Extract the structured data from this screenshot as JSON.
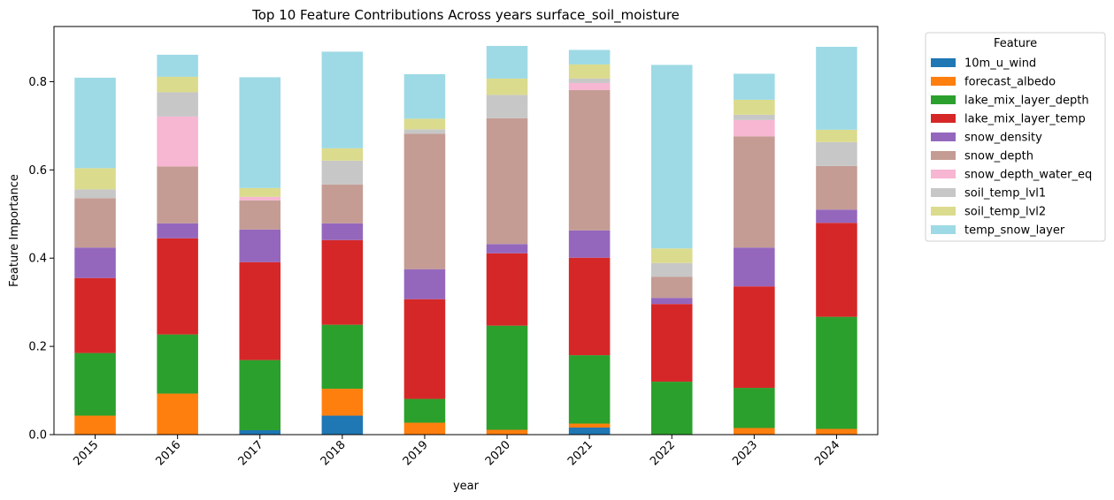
{
  "chart_data": {
    "type": "bar",
    "stacked": true,
    "title": "Top 10 Feature Contributions Across years surface_soil_moisture",
    "xlabel": "year",
    "ylabel": "Feature Importance",
    "ylim": [
      0,
      0.925
    ],
    "yticks": [
      "0.0",
      "0.2",
      "0.4",
      "0.6",
      "0.8"
    ],
    "ytick_values": [
      0.0,
      0.2,
      0.4,
      0.6,
      0.8
    ],
    "categories": [
      "2015",
      "2016",
      "2017",
      "2018",
      "2019",
      "2020",
      "2021",
      "2022",
      "2023",
      "2024"
    ],
    "legend_title": "Feature",
    "legend_position": "outside-right",
    "grid": false,
    "series": [
      {
        "name": "10m_u_wind",
        "color": "#1f77b4",
        "values": [
          0.0,
          0.0,
          0.01,
          0.043,
          0.0,
          0.0,
          0.016,
          0.0,
          0.0,
          0.0
        ]
      },
      {
        "name": "forecast_albedo",
        "color": "#ff7f0e",
        "values": [
          0.043,
          0.093,
          0.0,
          0.061,
          0.027,
          0.011,
          0.009,
          0.0,
          0.015,
          0.013
        ]
      },
      {
        "name": "lake_mix_layer_depth",
        "color": "#2ca02c",
        "values": [
          0.142,
          0.134,
          0.159,
          0.145,
          0.054,
          0.236,
          0.155,
          0.12,
          0.091,
          0.254
        ]
      },
      {
        "name": "lake_mix_layer_temp",
        "color": "#d62728",
        "values": [
          0.17,
          0.218,
          0.222,
          0.192,
          0.226,
          0.164,
          0.221,
          0.176,
          0.23,
          0.213
        ]
      },
      {
        "name": "snow_density",
        "color": "#9467bd",
        "values": [
          0.069,
          0.034,
          0.074,
          0.038,
          0.068,
          0.021,
          0.062,
          0.014,
          0.088,
          0.03
        ]
      },
      {
        "name": "snow_depth",
        "color": "#c49c94",
        "values": [
          0.112,
          0.129,
          0.066,
          0.088,
          0.307,
          0.285,
          0.318,
          0.048,
          0.252,
          0.099
        ]
      },
      {
        "name": "snow_depth_water_eq",
        "color": "#f7b6d2",
        "values": [
          0.0,
          0.113,
          0.008,
          0.0,
          0.0,
          0.0,
          0.016,
          0.0,
          0.037,
          0.0
        ]
      },
      {
        "name": "soil_temp_lvl1",
        "color": "#c7c7c7",
        "values": [
          0.02,
          0.055,
          0.0,
          0.054,
          0.01,
          0.053,
          0.01,
          0.031,
          0.012,
          0.054
        ]
      },
      {
        "name": "soil_temp_lvl2",
        "color": "#dbdb8d",
        "values": [
          0.048,
          0.035,
          0.02,
          0.028,
          0.024,
          0.037,
          0.032,
          0.033,
          0.034,
          0.028
        ]
      },
      {
        "name": "temp_snow_layer",
        "color": "#9edae5",
        "values": [
          0.205,
          0.05,
          0.251,
          0.219,
          0.101,
          0.074,
          0.033,
          0.416,
          0.059,
          0.188
        ]
      }
    ]
  }
}
